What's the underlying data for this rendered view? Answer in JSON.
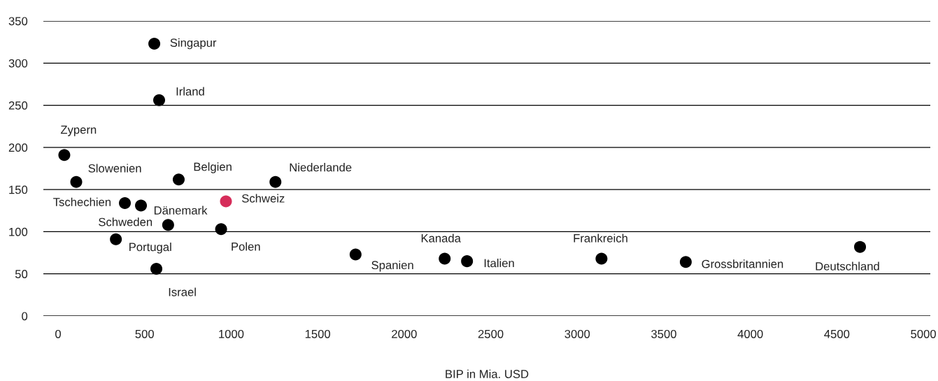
{
  "chart_data": {
    "type": "scatter",
    "xlabel": "BIP in Mia. USD",
    "x": [
      556,
      584,
      36,
      105,
      697,
      1256,
      386,
      479,
      970,
      636,
      942,
      334,
      568,
      1719,
      2234,
      2363,
      3140,
      3627,
      4634
    ],
    "values": [
      323,
      256,
      191,
      159,
      162,
      159,
      134,
      131,
      136,
      108,
      103,
      91,
      56,
      73,
      68,
      65,
      68,
      64,
      82
    ],
    "colors": [
      "#000000",
      "#000000",
      "#000000",
      "#000000",
      "#000000",
      "#000000",
      "#000000",
      "#000000",
      "#d62d5a",
      "#000000",
      "#000000",
      "#000000",
      "#000000",
      "#000000",
      "#000000",
      "#000000",
      "#000000",
      "#000000",
      "#000000"
    ],
    "annotations": [
      {
        "text": "Singapur",
        "x": 556,
        "y": 323
      },
      {
        "text": "Irland",
        "x": 584,
        "y": 256
      },
      {
        "text": "Zypern",
        "x": 36,
        "y": 191
      },
      {
        "text": "Slowenien",
        "x": 105,
        "y": 159
      },
      {
        "text": "Belgien",
        "x": 697,
        "y": 162
      },
      {
        "text": "Niederlande",
        "x": 1256,
        "y": 159
      },
      {
        "text": "Tschechien",
        "x": 386,
        "y": 134
      },
      {
        "text": "Dänemark",
        "x": 479,
        "y": 131
      },
      {
        "text": "Schweiz",
        "x": 970,
        "y": 136
      },
      {
        "text": "Schweden",
        "x": 636,
        "y": 108
      },
      {
        "text": "Polen",
        "x": 942,
        "y": 103
      },
      {
        "text": "Portugal",
        "x": 334,
        "y": 91
      },
      {
        "text": "Israel",
        "x": 568,
        "y": 56
      },
      {
        "text": "Spanien",
        "x": 1719,
        "y": 73
      },
      {
        "text": "Kanada",
        "x": 2234,
        "y": 68
      },
      {
        "text": "Italien",
        "x": 2363,
        "y": 65
      },
      {
        "text": "Frankreich",
        "x": 3140,
        "y": 68
      },
      {
        "text": "Grossbritannien",
        "x": 3627,
        "y": 64
      },
      {
        "text": "Deutschland",
        "x": 4634,
        "y": 82
      }
    ],
    "xlim": [
      -85,
      5040
    ],
    "ylim": [
      0,
      350
    ],
    "xticks": [
      0,
      500,
      1000,
      1500,
      2000,
      2500,
      3000,
      3500,
      4000,
      4500,
      5000
    ],
    "yticks": [
      0,
      50,
      100,
      150,
      200,
      250,
      300,
      350
    ],
    "grid": "y",
    "marker": "circle"
  }
}
